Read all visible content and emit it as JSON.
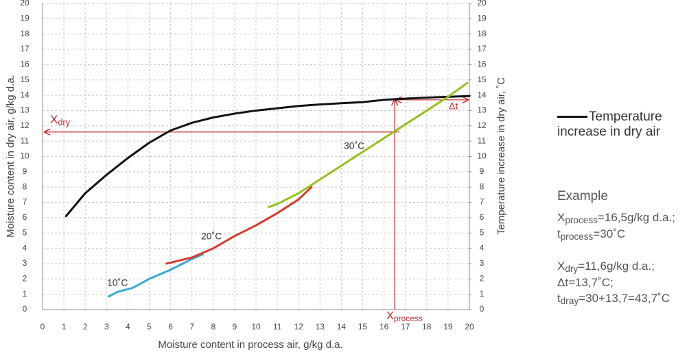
{
  "chart_data": {
    "type": "line",
    "xlabel": "Moisture content in process air, g/kg d.a.",
    "ylabel": "Moisture content in dry air, g/kg d.a.",
    "y2label": "Temperature increase in dry air, ˚C",
    "xlim": [
      0,
      20
    ],
    "xticks": [
      0,
      1,
      2,
      3,
      4,
      5,
      6,
      7,
      8,
      9,
      10,
      11,
      12,
      13,
      14,
      15,
      16,
      17,
      18,
      19,
      20
    ],
    "ylim": [
      0,
      20
    ],
    "yticks": [
      0,
      1,
      2,
      3,
      4,
      5,
      6,
      7,
      8,
      9,
      10,
      11,
      12,
      13,
      14,
      15,
      16,
      17,
      18,
      19,
      20
    ],
    "y2lim": [
      0,
      20
    ],
    "y2ticks": [
      0,
      1,
      2,
      3,
      4,
      5,
      6,
      7,
      8,
      9,
      10,
      11,
      12,
      13,
      14,
      15,
      16,
      17,
      18,
      19,
      20
    ],
    "grid": true,
    "series": [
      {
        "name": "Temperature increase in dry air",
        "color": "#111111",
        "axis": "y2",
        "x": [
          1.1,
          2,
          3,
          4,
          5,
          6,
          7,
          8,
          9,
          10,
          11,
          12,
          13,
          14,
          15,
          16,
          17,
          18,
          19,
          20
        ],
        "values": [
          6.1,
          7.6,
          8.8,
          9.9,
          10.9,
          11.7,
          12.2,
          12.55,
          12.8,
          13.0,
          13.15,
          13.3,
          13.4,
          13.48,
          13.55,
          13.7,
          13.78,
          13.85,
          13.9,
          13.95
        ]
      },
      {
        "label": "10˚C",
        "color": "#3aa7d4",
        "x": [
          3.1,
          3.5,
          4.2,
          5,
          6,
          7,
          7.5
        ],
        "values": [
          0.85,
          1.15,
          1.4,
          2.0,
          2.6,
          3.3,
          3.6
        ]
      },
      {
        "label": "20˚C",
        "color": "#d63a2e",
        "x": [
          5.8,
          7,
          8,
          9,
          10,
          11,
          12,
          12.6
        ],
        "values": [
          3.0,
          3.4,
          4.0,
          4.8,
          5.5,
          6.3,
          7.2,
          8.0
        ]
      },
      {
        "label": "30˚C",
        "color": "#95c11f",
        "x": [
          10.6,
          11,
          12,
          13,
          14,
          15,
          16,
          17,
          18,
          19,
          19.9
        ],
        "values": [
          6.7,
          6.9,
          7.6,
          8.5,
          9.4,
          10.3,
          11.2,
          12.1,
          13.0,
          13.9,
          14.8
        ]
      }
    ],
    "guides": {
      "x": 16.5,
      "y": 11.6,
      "y_top": 13.7
    },
    "annotations": {
      "x_dry": {
        "base": "X",
        "sub": "dry"
      },
      "x_process": {
        "base": "X",
        "sub": "process"
      },
      "delta_t": "Δt"
    }
  },
  "example": {
    "title": "Example",
    "groups": [
      [
        {
          "base": "X",
          "sub": "process",
          "text": "=16,5g/kg d.a.;"
        },
        {
          "base": "t",
          "sub": "process",
          "text": "=30˚C"
        }
      ],
      [
        {
          "base": "X",
          "sub": "dry",
          "text": "=11,6g/kg d.a.;"
        },
        {
          "text": "Δt=13,7˚C;"
        },
        {
          "base": "t",
          "sub": "dray",
          "text": "=30+13,7=43,7˚C"
        }
      ]
    ]
  }
}
